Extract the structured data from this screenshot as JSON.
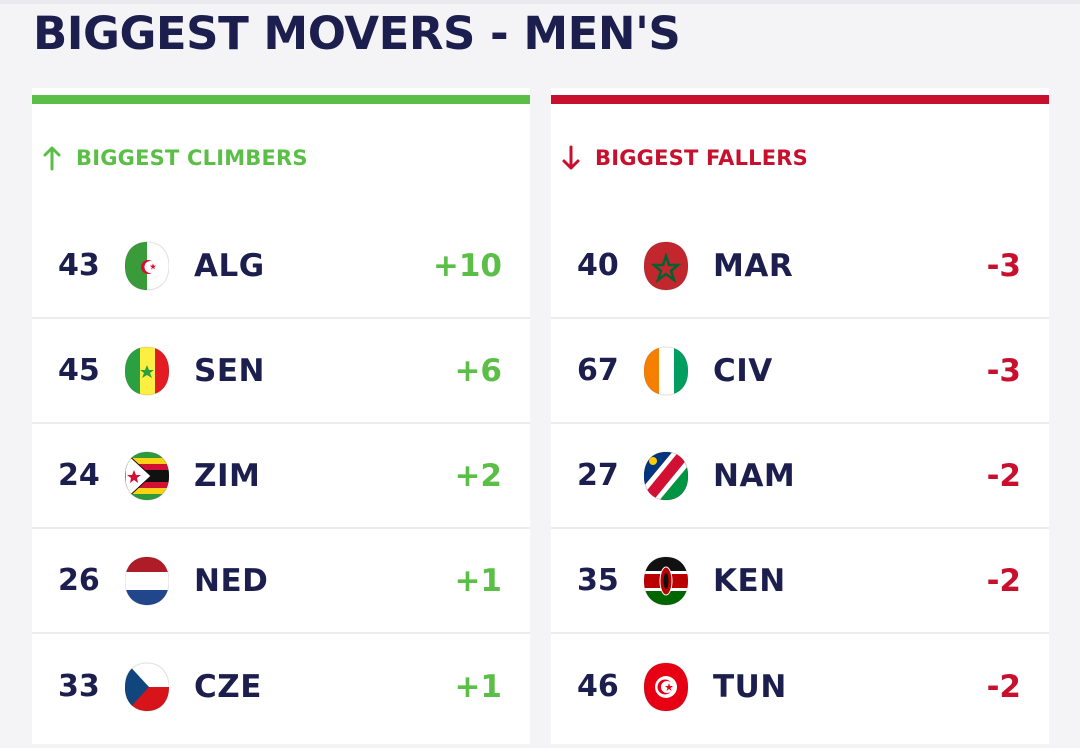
{
  "title": "BIGGEST MOVERS - MEN'S",
  "colors": {
    "navy": "#1c1f4d",
    "climb_green": "#5bbf47",
    "fall_red": "#c8102e"
  },
  "climbers": {
    "label": "BIGGEST CLIMBERS",
    "icon": "arrow-up-icon",
    "rows": [
      {
        "rank": "43",
        "code": "ALG",
        "change": "+10",
        "flag": "algeria"
      },
      {
        "rank": "45",
        "code": "SEN",
        "change": "+6",
        "flag": "senegal"
      },
      {
        "rank": "24",
        "code": "ZIM",
        "change": "+2",
        "flag": "zimbabwe"
      },
      {
        "rank": "26",
        "code": "NED",
        "change": "+1",
        "flag": "netherlands"
      },
      {
        "rank": "33",
        "code": "CZE",
        "change": "+1",
        "flag": "czechia"
      }
    ]
  },
  "fallers": {
    "label": "BIGGEST FALLERS",
    "icon": "arrow-down-icon",
    "rows": [
      {
        "rank": "40",
        "code": "MAR",
        "change": "-3",
        "flag": "morocco"
      },
      {
        "rank": "67",
        "code": "CIV",
        "change": "-3",
        "flag": "ivory-coast"
      },
      {
        "rank": "27",
        "code": "NAM",
        "change": "-2",
        "flag": "namibia"
      },
      {
        "rank": "35",
        "code": "KEN",
        "change": "-2",
        "flag": "kenya"
      },
      {
        "rank": "46",
        "code": "TUN",
        "change": "-2",
        "flag": "tunisia"
      }
    ]
  }
}
